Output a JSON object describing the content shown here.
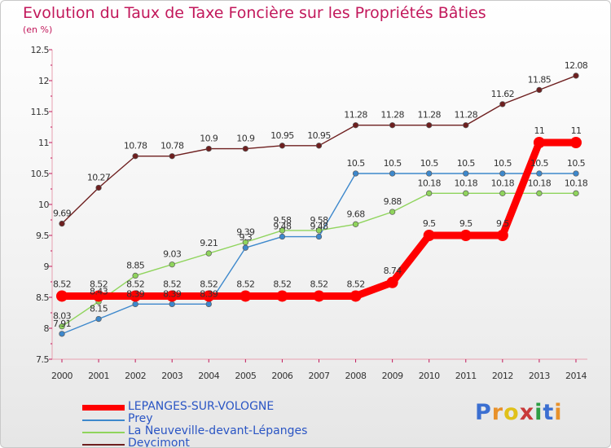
{
  "header": {
    "title": "Evolution du Taux de Taxe Foncière sur les Propriétés Bâties",
    "unit": "(en %)"
  },
  "logo": {
    "letters": [
      "P",
      "r",
      "o",
      "x",
      "i",
      "t",
      "i"
    ],
    "colors": [
      "#3b6fd1",
      "#e8912a",
      "#e0c11a",
      "#c93a3a",
      "#2f9e44",
      "#3b6fd1",
      "#e8912a"
    ]
  },
  "chart_data": {
    "type": "line",
    "title": "Evolution du Taux de Taxe Foncière sur les Propriétés Bâties",
    "ylabel": "(en %)",
    "xlabel": "",
    "ylim": [
      7.5,
      12.5
    ],
    "y_ticks": [
      "7.5",
      "8",
      "8.5",
      "9",
      "9.5",
      "10",
      "10.5",
      "11",
      "11.5",
      "12",
      "12.5"
    ],
    "categories": [
      "2000",
      "2001",
      "2002",
      "2003",
      "2004",
      "2005",
      "2006",
      "2007",
      "2008",
      "2009",
      "2010",
      "2011",
      "2012",
      "2013",
      "2014"
    ],
    "grid": false,
    "legend_position": "bottom-left",
    "series": [
      {
        "name": "Deycimont",
        "color": "#6e1f1f",
        "style": "thin",
        "values": [
          9.69,
          10.27,
          10.78,
          10.78,
          10.9,
          10.9,
          10.95,
          10.95,
          11.28,
          11.28,
          11.28,
          11.28,
          11.62,
          11.85,
          12.08
        ],
        "labels": [
          "9.69",
          "10.27",
          "10.78",
          "10.78",
          "10.9",
          "10.9",
          "10.95",
          "10.95",
          "11.28",
          "11.28",
          "11.28",
          "11.28",
          "11.62",
          "11.85",
          "12.08"
        ]
      },
      {
        "name": "Prey",
        "color": "#3d88cc",
        "style": "thin",
        "values": [
          7.91,
          8.15,
          8.39,
          8.39,
          8.39,
          9.3,
          9.48,
          9.48,
          10.5,
          10.5,
          10.5,
          10.5,
          10.5,
          10.5,
          10.5
        ],
        "labels": [
          "7.91",
          "8.15",
          "8.39",
          "8.39",
          "8.39",
          "9.3",
          "9.48",
          "9.48",
          "10.5",
          "10.5",
          "10.5",
          "10.5",
          "10.5",
          "10.5",
          "10.5"
        ]
      },
      {
        "name": "La Neuveville-devant-Lépanges",
        "color": "#8fd45c",
        "style": "thin",
        "values": [
          8.03,
          8.43,
          8.85,
          9.03,
          9.21,
          9.39,
          9.58,
          9.58,
          9.68,
          9.88,
          10.18,
          10.18,
          10.18,
          10.18,
          10.18
        ],
        "labels": [
          "8.03",
          "8.43",
          "8.85",
          "9.03",
          "9.21",
          "9.39",
          "9.58",
          "9.58",
          "9.68",
          "9.88",
          "10.18",
          "10.18",
          "10.18",
          "10.18",
          "10.18"
        ]
      },
      {
        "name": "LEPANGES-SUR-VOLOGNE",
        "color": "#ff0000",
        "style": "thick",
        "values": [
          8.52,
          8.52,
          8.52,
          8.52,
          8.52,
          8.52,
          8.52,
          8.52,
          8.52,
          8.74,
          9.5,
          9.5,
          9.5,
          11,
          11
        ],
        "labels": [
          "8.52",
          "8.52",
          "8.52",
          "8.52",
          "8.52",
          "8.52",
          "8.52",
          "8.52",
          "8.52",
          "8.74",
          "9.5",
          "9.5",
          "9.5",
          "11",
          "11"
        ]
      }
    ],
    "legend": [
      {
        "label": "LEPANGES-SUR-VOLOGNE",
        "color": "#ff0000",
        "thick": true
      },
      {
        "label": "Prey",
        "color": "#3d88cc",
        "thick": false
      },
      {
        "label": "La Neuveville-devant-Lépanges",
        "color": "#8fd45c",
        "thick": false
      },
      {
        "label": "Deycimont",
        "color": "#6e1f1f",
        "thick": false
      }
    ]
  }
}
